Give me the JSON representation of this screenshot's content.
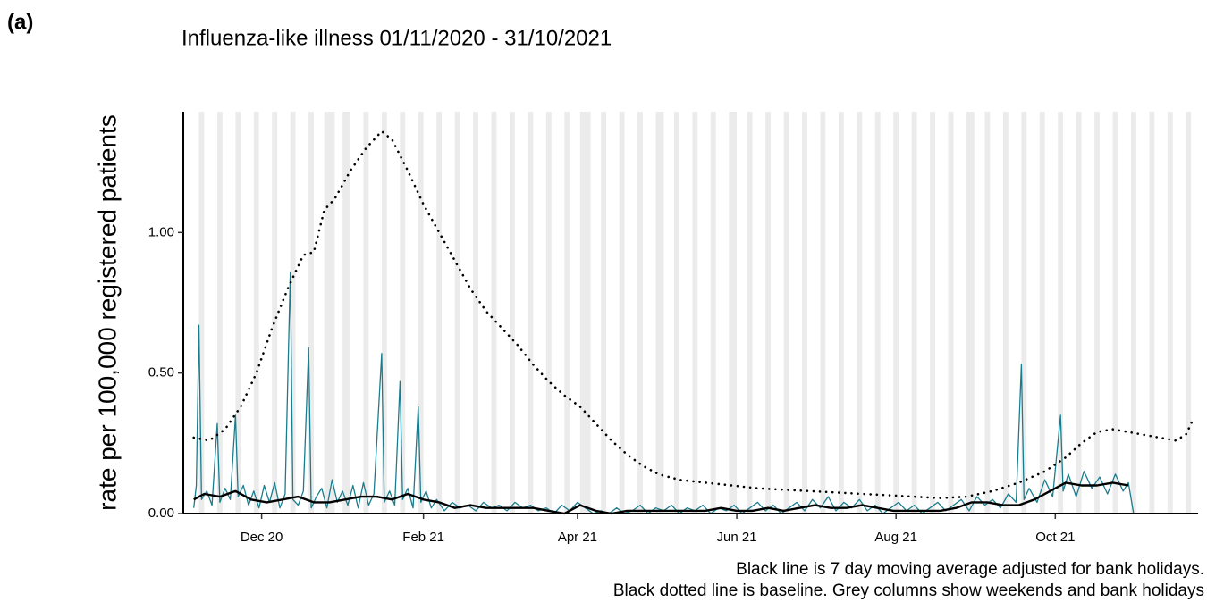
{
  "chart_data": {
    "type": "line",
    "panel_label": "(a)",
    "title": "Influenza-like illness 01/11/2020 - 31/10/2021",
    "y_label": "rate per 100,000 registered patients",
    "notes": [
      "Black line is 7 day moving average adjusted for bank holidays.",
      "Black dotted line is baseline. Grey columns show weekends and bank holidays"
    ],
    "xlim": [
      0,
      388
    ],
    "ylim": [
      0,
      1.43
    ],
    "xticks": [
      {
        "value": 30,
        "label": "Dec 20"
      },
      {
        "value": 92,
        "label": "Feb 21"
      },
      {
        "value": 151,
        "label": "Apr 21"
      },
      {
        "value": 212,
        "label": "Jun 21"
      },
      {
        "value": 273,
        "label": "Aug 21"
      },
      {
        "value": 334,
        "label": "Oct 21"
      }
    ],
    "yticks": [
      {
        "value": 0,
        "label": "0.00"
      },
      {
        "value": 0.5,
        "label": "0.50"
      },
      {
        "value": 1,
        "label": "1.00"
      }
    ],
    "shaded_color": "#ebebeb",
    "shaded": [
      [
        6,
        8
      ],
      [
        13,
        15
      ],
      [
        20,
        22
      ],
      [
        27,
        29
      ],
      [
        34,
        36
      ],
      [
        41,
        43
      ],
      [
        48,
        50
      ],
      [
        54,
        58
      ],
      [
        61,
        64
      ],
      [
        69,
        71
      ],
      [
        76,
        78
      ],
      [
        83,
        85
      ],
      [
        90,
        92
      ],
      [
        97,
        99
      ],
      [
        104,
        106
      ],
      [
        111,
        113
      ],
      [
        118,
        120
      ],
      [
        125,
        127
      ],
      [
        132,
        134
      ],
      [
        139,
        141
      ],
      [
        146,
        148
      ],
      [
        152,
        156
      ],
      [
        160,
        162
      ],
      [
        167,
        169
      ],
      [
        174,
        176
      ],
      [
        181,
        184
      ],
      [
        188,
        190
      ],
      [
        195,
        197
      ],
      [
        202,
        204
      ],
      [
        209,
        212
      ],
      [
        216,
        218
      ],
      [
        223,
        225
      ],
      [
        230,
        232
      ],
      [
        237,
        239
      ],
      [
        244,
        246
      ],
      [
        251,
        253
      ],
      [
        258,
        260
      ],
      [
        265,
        267
      ],
      [
        272,
        274
      ],
      [
        279,
        281
      ],
      [
        286,
        288
      ],
      [
        293,
        295
      ],
      [
        300,
        303
      ],
      [
        307,
        309
      ],
      [
        314,
        316
      ],
      [
        321,
        323
      ],
      [
        328,
        330
      ],
      [
        335,
        337
      ],
      [
        342,
        344
      ],
      [
        349,
        351
      ],
      [
        356,
        358
      ],
      [
        363,
        365
      ],
      [
        370,
        372
      ],
      [
        377,
        379
      ],
      [
        384,
        386
      ]
    ],
    "series": [
      {
        "style": "solid",
        "color": "#1a7d8e",
        "width": 1.3,
        "x": [
          4,
          5,
          6,
          7,
          9,
          11,
          13,
          14,
          16,
          18,
          20,
          21,
          23,
          25,
          27,
          29,
          31,
          33,
          35,
          37,
          39,
          41,
          42,
          44,
          46,
          48,
          49,
          51,
          53,
          55,
          57,
          59,
          61,
          63,
          65,
          67,
          69,
          71,
          73,
          76,
          77,
          79,
          81,
          83,
          84,
          86,
          88,
          90,
          91,
          93,
          95,
          97,
          100,
          103,
          106,
          109,
          112,
          115,
          118,
          121,
          124,
          127,
          130,
          133,
          136,
          139,
          142,
          145,
          148,
          151,
          154,
          157,
          160,
          163,
          166,
          169,
          172,
          175,
          178,
          181,
          184,
          187,
          190,
          193,
          196,
          199,
          202,
          205,
          208,
          211,
          214,
          217,
          220,
          223,
          226,
          229,
          232,
          235,
          238,
          241,
          244,
          247,
          250,
          253,
          256,
          259,
          262,
          265,
          268,
          271,
          274,
          277,
          280,
          283,
          286,
          289,
          292,
          295,
          298,
          301,
          304,
          307,
          310,
          313,
          316,
          319,
          321,
          322,
          324,
          327,
          330,
          333,
          336,
          337,
          339,
          342,
          345,
          348,
          351,
          354,
          357,
          360,
          362,
          364
        ],
        "values": [
          0.02,
          0.1,
          0.67,
          0.05,
          0.08,
          0.03,
          0.32,
          0.04,
          0.09,
          0.05,
          0.35,
          0.06,
          0.1,
          0.03,
          0.08,
          0.02,
          0.1,
          0.04,
          0.11,
          0.02,
          0.07,
          0.86,
          0.05,
          0.03,
          0.08,
          0.59,
          0.02,
          0.06,
          0.09,
          0.02,
          0.12,
          0.04,
          0.08,
          0.03,
          0.1,
          0.02,
          0.11,
          0.03,
          0.07,
          0.57,
          0.04,
          0.08,
          0.03,
          0.47,
          0.05,
          0.09,
          0.02,
          0.38,
          0.04,
          0.08,
          0.02,
          0.05,
          0.01,
          0.04,
          0.02,
          0.03,
          0.01,
          0.04,
          0.02,
          0.03,
          0.01,
          0.04,
          0.02,
          0.03,
          0.01,
          0.02,
          0,
          0.03,
          0.01,
          0.04,
          0.02,
          0,
          0.01,
          0,
          0.02,
          0,
          0.01,
          0.03,
          0,
          0.02,
          0.01,
          0.03,
          0,
          0.02,
          0.01,
          0.03,
          0,
          0.02,
          0.01,
          0.03,
          0,
          0.02,
          0.04,
          0.01,
          0.03,
          0,
          0.02,
          0.04,
          0.01,
          0.05,
          0.02,
          0.06,
          0.01,
          0.04,
          0.02,
          0.05,
          0.01,
          0.03,
          0,
          0.02,
          0.04,
          0.01,
          0.03,
          0,
          0.02,
          0.04,
          0.01,
          0.03,
          0.05,
          0.01,
          0.06,
          0.03,
          0.05,
          0.02,
          0.07,
          0.04,
          0.53,
          0.05,
          0.09,
          0.04,
          0.12,
          0.06,
          0.35,
          0.08,
          0.14,
          0.06,
          0.15,
          0.09,
          0.13,
          0.07,
          0.14,
          0.08,
          0.11,
          0
        ]
      },
      {
        "style": "solid",
        "color": "#000000",
        "width": 2.4,
        "x": [
          4,
          8,
          14,
          20,
          26,
          32,
          38,
          44,
          50,
          56,
          62,
          68,
          74,
          80,
          86,
          92,
          98,
          104,
          110,
          116,
          122,
          128,
          134,
          140,
          146,
          152,
          158,
          164,
          170,
          176,
          182,
          188,
          194,
          200,
          206,
          212,
          218,
          224,
          230,
          236,
          242,
          248,
          254,
          260,
          266,
          272,
          278,
          284,
          290,
          296,
          302,
          308,
          314,
          320,
          326,
          332,
          338,
          344,
          350,
          356,
          362
        ],
        "values": [
          0.05,
          0.07,
          0.06,
          0.08,
          0.05,
          0.04,
          0.05,
          0.06,
          0.04,
          0.04,
          0.05,
          0.06,
          0.06,
          0.05,
          0.07,
          0.05,
          0.04,
          0.02,
          0.03,
          0.02,
          0.02,
          0.02,
          0.02,
          0.01,
          0,
          0.03,
          0.01,
          0,
          0.01,
          0.01,
          0.01,
          0.01,
          0.01,
          0.01,
          0.02,
          0.01,
          0.01,
          0.02,
          0.01,
          0.02,
          0.03,
          0.02,
          0.02,
          0.03,
          0.02,
          0.01,
          0.01,
          0.01,
          0.01,
          0.02,
          0.04,
          0.04,
          0.03,
          0.03,
          0.05,
          0.08,
          0.11,
          0.1,
          0.1,
          0.11,
          0.1
        ]
      },
      {
        "style": "dotted",
        "color": "#000000",
        "width": 2.6,
        "x": [
          4,
          10,
          16,
          22,
          28,
          34,
          40,
          46,
          50,
          54,
          58,
          64,
          70,
          76,
          80,
          86,
          92,
          98,
          104,
          110,
          116,
          122,
          128,
          134,
          140,
          146,
          152,
          158,
          164,
          170,
          176,
          182,
          190,
          200,
          210,
          220,
          230,
          240,
          250,
          260,
          270,
          280,
          290,
          300,
          310,
          320,
          330,
          338,
          344,
          350,
          356,
          362,
          368,
          374,
          380,
          384,
          387
        ],
        "values": [
          0.27,
          0.26,
          0.3,
          0.38,
          0.5,
          0.66,
          0.8,
          0.92,
          0.93,
          1.08,
          1.12,
          1.22,
          1.3,
          1.36,
          1.33,
          1.22,
          1.1,
          1,
          0.9,
          0.8,
          0.72,
          0.66,
          0.6,
          0.53,
          0.47,
          0.42,
          0.38,
          0.32,
          0.26,
          0.21,
          0.17,
          0.14,
          0.12,
          0.11,
          0.1,
          0.09,
          0.085,
          0.08,
          0.075,
          0.07,
          0.065,
          0.06,
          0.055,
          0.06,
          0.08,
          0.11,
          0.15,
          0.2,
          0.25,
          0.29,
          0.3,
          0.29,
          0.28,
          0.27,
          0.26,
          0.28,
          0.34
        ]
      }
    ]
  }
}
